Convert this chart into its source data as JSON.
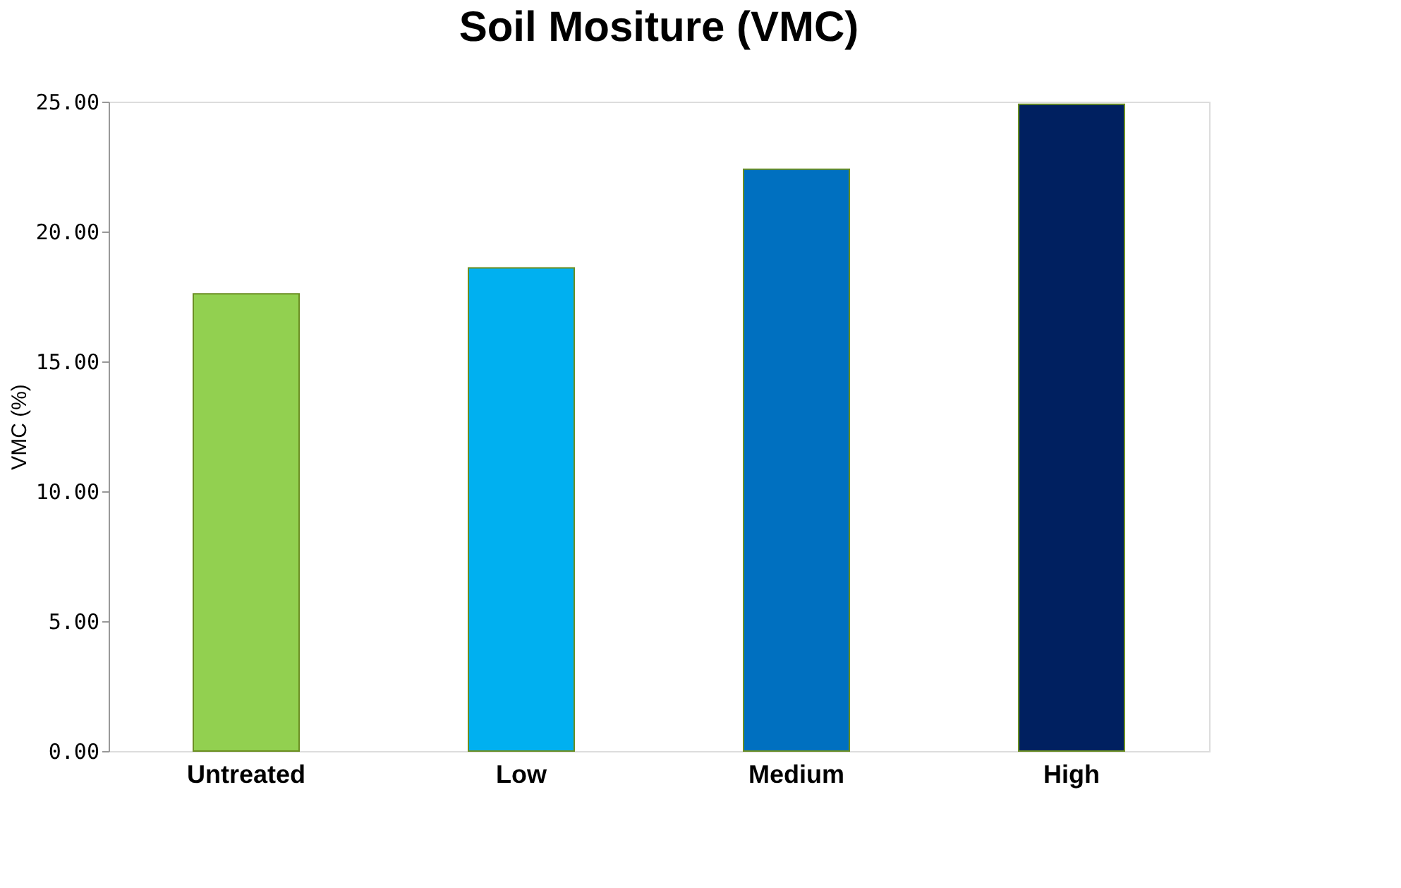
{
  "chart_data": {
    "type": "bar",
    "title": "Soil Mositure (VMC)",
    "ylabel": "VMC (%)",
    "categories": [
      "Untreated",
      "Low",
      "Medium",
      "High"
    ],
    "values": [
      17.6,
      18.6,
      22.4,
      24.9
    ],
    "colors": [
      "#92d050",
      "#00b0f0",
      "#0070c0",
      "#002060"
    ],
    "ylim": [
      0,
      25
    ],
    "yticks": [
      {
        "value": 0,
        "label": "0.00"
      },
      {
        "value": 5,
        "label": "5.00"
      },
      {
        "value": 10,
        "label": "10.00"
      },
      {
        "value": 15,
        "label": "15.00"
      },
      {
        "value": 20,
        "label": "20.00"
      },
      {
        "value": 25,
        "label": "25.00"
      }
    ],
    "grid": false,
    "legend": false
  }
}
